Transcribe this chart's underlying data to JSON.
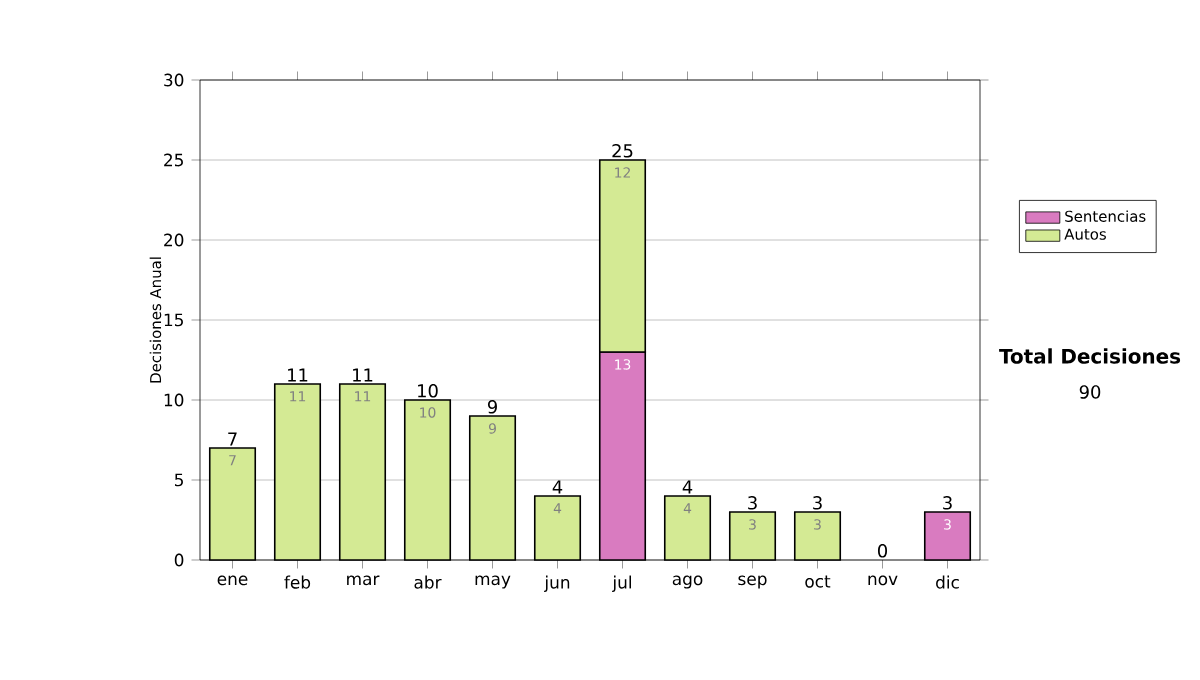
{
  "chart_data": {
    "type": "bar",
    "stacked": true,
    "ylabel": "Decisiones Anual",
    "categories": [
      "ene",
      "feb",
      "mar",
      "abr",
      "may",
      "jun",
      "jul",
      "ago",
      "sep",
      "oct",
      "nov",
      "dic"
    ],
    "series": [
      {
        "name": "Sentencias",
        "color": "#d97bc0",
        "values": [
          0,
          0,
          0,
          0,
          0,
          0,
          13,
          0,
          0,
          0,
          0,
          3
        ],
        "value_labels": [
          null,
          null,
          null,
          null,
          null,
          null,
          "13",
          null,
          null,
          null,
          null,
          "3"
        ]
      },
      {
        "name": "Autos",
        "color": "#d4ea94",
        "values": [
          7,
          11,
          11,
          10,
          9,
          4,
          12,
          4,
          3,
          3,
          0,
          0
        ],
        "value_labels": [
          "7",
          "11",
          "11",
          "10",
          "9",
          "4",
          "12",
          "4",
          "3",
          "3",
          null,
          null
        ]
      }
    ],
    "totals": [
      "7",
      "11",
      "11",
      "10",
      "9",
      "4",
      "25",
      "4",
      "3",
      "3",
      "0",
      "3"
    ],
    "ylim": [
      0,
      30
    ],
    "yticks": [
      0,
      5,
      10,
      15,
      20,
      25,
      30
    ],
    "grid": "y",
    "legend": "right",
    "annotations": [
      "Total Decisiones",
      "90"
    ]
  }
}
